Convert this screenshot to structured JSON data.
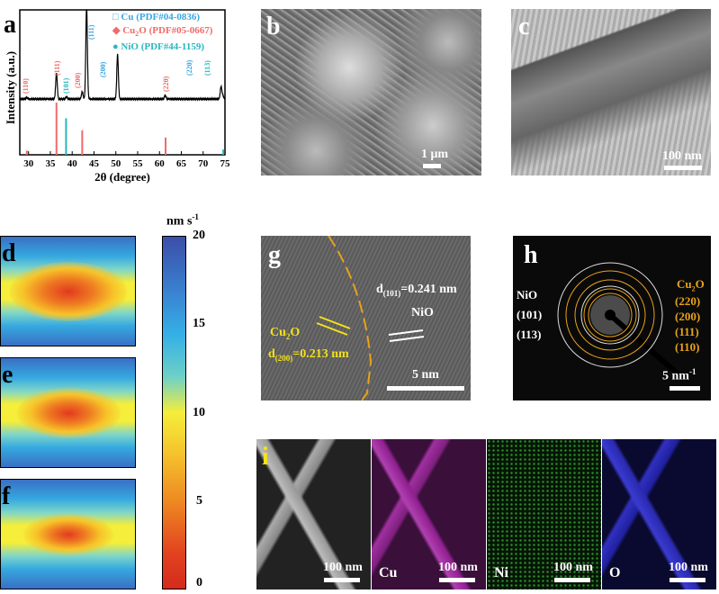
{
  "panels": {
    "a": "a",
    "b": "b",
    "c": "c",
    "d": "d",
    "e": "e",
    "f": "f",
    "g": "g",
    "h": "h",
    "i": "i"
  },
  "chart_data": {
    "type": "line",
    "xlabel": "2θ (degree)",
    "ylabel": "Intensity (a.u.)",
    "xlim": [
      28,
      75
    ],
    "xticks": [
      30,
      35,
      40,
      45,
      50,
      55,
      60,
      65,
      70,
      75
    ],
    "legend": [
      {
        "name": "Cu (PDF#04-0836)",
        "color": "#3aa7e0",
        "marker": "square-open"
      },
      {
        "name": "Cu2O (PDF#05-0667)",
        "color": "#f06a6a",
        "marker": "diamond"
      },
      {
        "name": "NiO (PDF#44-1159)",
        "color": "#28b8c0",
        "marker": "circle"
      }
    ],
    "legend_position": "top-right",
    "peaks": [
      {
        "x": 29.6,
        "h": 0.02,
        "label": "(110)",
        "phase": "Cu2O"
      },
      {
        "x": 36.4,
        "h": 0.36,
        "label": "(111)",
        "phase": "Cu2O"
      },
      {
        "x": 38.7,
        "h": 0.03,
        "label": "(101)",
        "phase": "NiO"
      },
      {
        "x": 42.3,
        "h": 0.1,
        "label": "(200)",
        "phase": "Cu2O"
      },
      {
        "x": 43.3,
        "h": 1.3,
        "label": "(111)",
        "phase": "Cu"
      },
      {
        "x": 50.4,
        "h": 0.62,
        "label": "(200)",
        "phase": "Cu"
      },
      {
        "x": 61.3,
        "h": 0.05,
        "label": "(220)",
        "phase": "Cu2O"
      },
      {
        "x": 74.1,
        "h": 0.17,
        "label": "(220)",
        "phase": "Cu"
      },
      {
        "x": 74.5,
        "h": 0.05,
        "label": "(113)",
        "phase": "NiO"
      }
    ],
    "reference_sticks": [
      {
        "x": 29.6,
        "h": 0.08,
        "phase": "Cu2O"
      },
      {
        "x": 36.4,
        "h": 1.0,
        "phase": "Cu2O"
      },
      {
        "x": 38.6,
        "h": 0.7,
        "phase": "NiO"
      },
      {
        "x": 42.3,
        "h": 0.47,
        "phase": "Cu2O"
      },
      {
        "x": 61.4,
        "h": 0.33,
        "phase": "Cu2O"
      },
      {
        "x": 74.6,
        "h": 0.1,
        "phase": "NiO"
      }
    ]
  },
  "legend_text": {
    "cu": "Cu (PDF#04-0836)",
    "cu2o_main": "Cu",
    "cu2o_sub": "2",
    "cu2o_rest": "O (PDF#05-0667)",
    "nio": "NiO (PDF#44-1159)"
  },
  "scalebars": {
    "b": "1 μm",
    "c": "100 nm",
    "g": "5 nm",
    "h": "5 nm",
    "h_sup": "-1",
    "i": "100 nm"
  },
  "colorbar": {
    "unit": "nm s",
    "unit_sup": "-1",
    "ticks": [
      "20",
      "15",
      "10",
      "5",
      "0"
    ],
    "range": [
      0,
      20
    ]
  },
  "g": {
    "d101": "d",
    "d101_sub": "(101)",
    "d101_val": "=0.241 nm",
    "nio": "NiO",
    "cu2o": "Cu",
    "cu2o_sub": "2",
    "cu2o_o": "O",
    "d200": "d",
    "d200_sub": "(200)",
    "d200_val": "=0.213 nm"
  },
  "h": {
    "nio": "NiO",
    "n101": "(101)",
    "n113": "(113)",
    "cu2o": "Cu",
    "cu2o_sub": "2",
    "cu2o_o": "O",
    "c220": "(220)",
    "c200": "(200)",
    "c111": "(111)",
    "c110": "(110)"
  },
  "i": {
    "labels": [
      "",
      "Cu",
      "Ni",
      "O"
    ]
  }
}
